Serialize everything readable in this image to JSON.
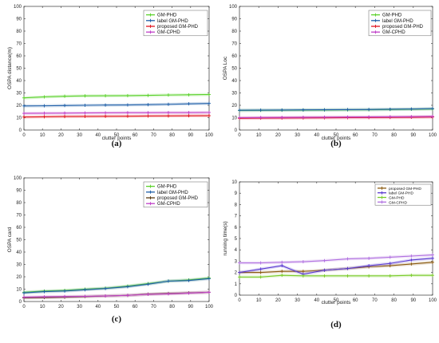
{
  "chart_data": [
    {
      "id": "a",
      "caption": "(a)",
      "type": "line",
      "xlabel": "clutter points",
      "ylabel": "OSPA distance(m)",
      "xlim": [
        0,
        100
      ],
      "ylim": [
        0,
        100
      ],
      "xticks": [
        0,
        10,
        20,
        30,
        40,
        50,
        60,
        70,
        80,
        90,
        100
      ],
      "yticks": [
        0,
        10,
        20,
        30,
        40,
        50,
        60,
        70,
        80,
        90,
        100
      ],
      "legend": "top-right",
      "x": [
        0,
        11,
        22,
        33,
        44,
        56,
        67,
        78,
        89,
        100
      ],
      "series": [
        {
          "name": "GM-PHD",
          "color": "#5ad12a",
          "marker": "plus",
          "values": [
            26,
            26.8,
            27.3,
            27.6,
            27.7,
            27.8,
            28,
            28.3,
            28.5,
            28.7
          ]
        },
        {
          "name": "label GM-PHD",
          "color": "#1f5fa8",
          "marker": "plus",
          "values": [
            19.5,
            19.6,
            19.8,
            20,
            20.2,
            20.3,
            20.5,
            20.8,
            21.2,
            21.5
          ]
        },
        {
          "name": "proposed GM-PHD",
          "color": "#e0141e",
          "marker": "plus",
          "values": [
            10.5,
            10.7,
            10.9,
            11,
            11.1,
            11.2,
            11.3,
            11.4,
            11.5,
            11.6
          ]
        },
        {
          "name": "GM-CPHD",
          "color": "#c040c8",
          "marker": "plus",
          "values": [
            13.5,
            13.6,
            13.7,
            13.8,
            13.9,
            14,
            14,
            14.1,
            14.1,
            14.2
          ]
        }
      ]
    },
    {
      "id": "b",
      "caption": "(b)",
      "type": "line",
      "xlabel": "clutter points",
      "ylabel": "OSPA Loc",
      "xlim": [
        0,
        100
      ],
      "ylim": [
        0,
        100
      ],
      "xticks": [
        0,
        10,
        20,
        30,
        40,
        50,
        60,
        70,
        80,
        90,
        100
      ],
      "yticks": [
        0,
        10,
        20,
        30,
        40,
        50,
        60,
        70,
        80,
        90,
        100
      ],
      "legend": "top-right",
      "x": [
        0,
        11,
        22,
        33,
        44,
        56,
        67,
        78,
        89,
        100
      ],
      "series": [
        {
          "name": "GM-PHD",
          "color": "#5ad12a",
          "marker": "plus",
          "values": [
            15.8,
            15.9,
            16,
            16.1,
            16.2,
            16.3,
            16.4,
            16.6,
            16.8,
            17
          ]
        },
        {
          "name": "label GM-PHD",
          "color": "#1f5fa8",
          "marker": "plus",
          "values": [
            16,
            16.1,
            16.2,
            16.3,
            16.4,
            16.5,
            16.6,
            16.8,
            17,
            17.3
          ]
        },
        {
          "name": "proposed GM-PHD",
          "color": "#e0141e",
          "marker": "plus",
          "values": [
            9.5,
            9.6,
            9.7,
            9.8,
            9.9,
            10,
            10.1,
            10.2,
            10.3,
            10.5
          ]
        },
        {
          "name": "GM-CPHD",
          "color": "#c040c8",
          "marker": "plus",
          "values": [
            10,
            10.1,
            10.2,
            10.3,
            10.4,
            10.5,
            10.6,
            10.7,
            10.8,
            11
          ]
        }
      ]
    },
    {
      "id": "c",
      "caption": "(c)",
      "type": "line",
      "xlabel": "",
      "ylabel": "OSPA card",
      "xlim": [
        0,
        100
      ],
      "ylim": [
        0,
        100
      ],
      "xticks": [
        0,
        10,
        20,
        30,
        40,
        50,
        60,
        70,
        80,
        90,
        100
      ],
      "yticks": [
        0,
        10,
        20,
        30,
        40,
        50,
        60,
        70,
        80,
        90,
        100
      ],
      "legend": "top-right",
      "x": [
        0,
        11,
        22,
        33,
        44,
        56,
        67,
        78,
        89,
        100
      ],
      "series": [
        {
          "name": "GM-PHD",
          "color": "#5ad12a",
          "marker": "plus",
          "values": [
            7.5,
            8.5,
            9,
            10,
            10.8,
            12.5,
            14.5,
            16.5,
            17.5,
            19
          ]
        },
        {
          "name": "label GM-PHD",
          "color": "#1f5fa8",
          "marker": "plus",
          "values": [
            7,
            8,
            8.5,
            9.5,
            10.5,
            12,
            14,
            16.5,
            17,
            18.5
          ]
        },
        {
          "name": "proposed GM-PHD",
          "color": "#5a3a10",
          "marker": "plus",
          "values": [
            3,
            3.2,
            3.5,
            4,
            4.5,
            5,
            6,
            6.5,
            7,
            7.5
          ]
        },
        {
          "name": "GM-CPHD",
          "color": "#c040c8",
          "marker": "plus",
          "values": [
            3.5,
            3.8,
            4,
            4.2,
            4.5,
            5,
            5.8,
            6.2,
            6.8,
            7.5
          ]
        }
      ]
    },
    {
      "id": "d",
      "caption": "(d)",
      "type": "line",
      "xlabel": "clutter points",
      "ylabel": "running time(s)",
      "xlim": [
        0,
        100
      ],
      "ylim": [
        0,
        10
      ],
      "xticks": [
        0,
        10,
        20,
        30,
        40,
        50,
        60,
        70,
        80,
        90,
        100
      ],
      "yticks": [
        0,
        1,
        2,
        3,
        4,
        5,
        6,
        7,
        8,
        9,
        10
      ],
      "legend": "top-right",
      "x": [
        0,
        11,
        22,
        33,
        44,
        56,
        67,
        78,
        89,
        100
      ],
      "series": [
        {
          "name": "proposed GM-PHD",
          "color": "#8a5a10",
          "marker": "plus",
          "values": [
            2,
            2,
            2.1,
            2.1,
            2.2,
            2.35,
            2.5,
            2.6,
            2.75,
            2.9
          ]
        },
        {
          "name": "label GM-PHD",
          "color": "#5a3ad0",
          "marker": "plus",
          "values": [
            2,
            2.3,
            2.6,
            1.85,
            2.2,
            2.35,
            2.6,
            2.8,
            3.1,
            3.25
          ]
        },
        {
          "name": "GM-PHD",
          "color": "#7acc2a",
          "marker": "plus",
          "values": [
            1.6,
            1.6,
            1.75,
            1.7,
            1.7,
            1.7,
            1.7,
            1.7,
            1.75,
            1.75
          ]
        },
        {
          "name": "GM-CPHD",
          "color": "#b070e0",
          "marker": "plus",
          "values": [
            2.85,
            2.85,
            2.9,
            2.95,
            3.05,
            3.2,
            3.25,
            3.35,
            3.45,
            3.55
          ]
        }
      ]
    }
  ]
}
